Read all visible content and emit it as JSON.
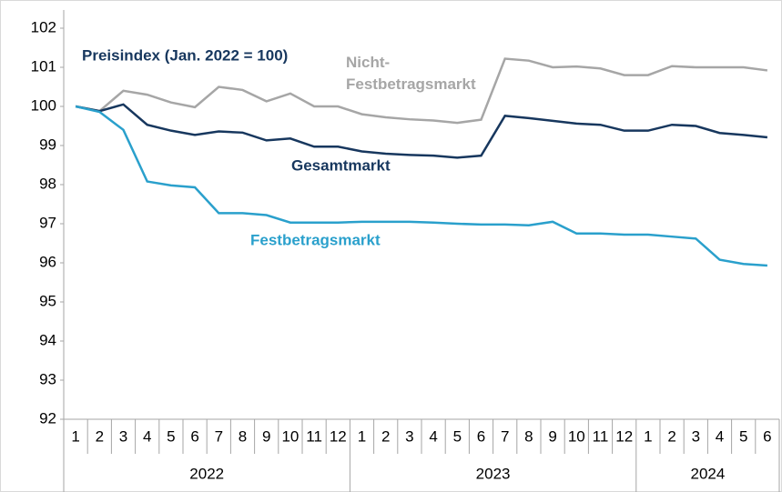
{
  "chart_data": {
    "type": "line",
    "title": "Preisindex (Jan. 2022 = 100)",
    "categories": [
      "1",
      "2",
      "3",
      "4",
      "5",
      "6",
      "7",
      "8",
      "9",
      "10",
      "11",
      "12",
      "1",
      "2",
      "3",
      "4",
      "5",
      "6",
      "7",
      "8",
      "9",
      "10",
      "11",
      "12",
      "1",
      "2",
      "3",
      "4",
      "5",
      "6"
    ],
    "category_groups": [
      "2022",
      "2023",
      "2024"
    ],
    "ylim": [
      92,
      102
    ],
    "yticks": [
      92,
      93,
      94,
      95,
      96,
      97,
      98,
      99,
      100,
      101,
      102
    ],
    "grid": false,
    "series": [
      {
        "name": "Nicht-Festbetragsmarkt",
        "color": "#a6a6a6",
        "values": [
          100,
          99.88,
          100.4,
          100.3,
          100.1,
          99.98,
          100.5,
          100.42,
          100.13,
          100.33,
          100.0,
          100.0,
          99.8,
          99.72,
          99.67,
          99.64,
          99.58,
          99.66,
          101.22,
          101.17,
          101.0,
          101.02,
          100.97,
          100.8,
          100.8,
          101.03,
          101.0,
          101.0,
          101.0,
          100.92
        ]
      },
      {
        "name": "Gesamtmarkt",
        "color": "#17375e",
        "values": [
          100,
          99.88,
          100.05,
          99.53,
          99.38,
          99.27,
          99.36,
          99.33,
          99.13,
          99.18,
          98.97,
          98.97,
          98.85,
          98.79,
          98.76,
          98.74,
          98.69,
          98.74,
          99.76,
          99.7,
          99.63,
          99.56,
          99.53,
          99.38,
          99.38,
          99.53,
          99.5,
          99.32,
          99.27,
          99.21
        ]
      },
      {
        "name": "Festbetragsmarkt",
        "color": "#2aa0cc",
        "values": [
          100,
          99.86,
          99.4,
          98.08,
          97.98,
          97.93,
          97.27,
          97.27,
          97.22,
          97.03,
          97.03,
          97.03,
          97.05,
          97.05,
          97.05,
          97.03,
          97.0,
          96.98,
          96.98,
          96.96,
          97.05,
          96.75,
          96.75,
          96.72,
          96.72,
          96.67,
          96.62,
          96.08,
          95.97,
          95.93
        ]
      }
    ]
  }
}
